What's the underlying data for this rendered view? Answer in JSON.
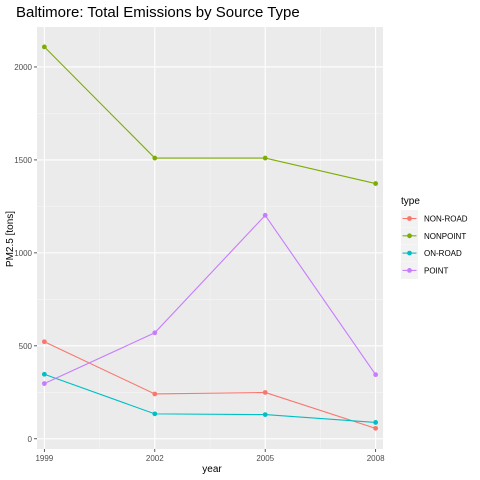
{
  "chart_data": {
    "type": "line",
    "title": "Baltimore: Total Emissions by Source Type",
    "xlabel": "year",
    "ylabel": "PM2.5 [tons]",
    "x": [
      1999,
      2002,
      2005,
      2008
    ],
    "x_ticks": [
      "1999",
      "2002",
      "2005",
      "2008"
    ],
    "y_ticks": [
      0,
      500,
      1000,
      1500,
      2000
    ],
    "xlim": [
      1998.8,
      2008.2
    ],
    "ylim": [
      -55,
      2215
    ],
    "grid": true,
    "legend_title": "type",
    "legend_position": "right",
    "series": [
      {
        "name": "NON-ROAD",
        "color": "#F8766D",
        "values": [
          522,
          241,
          249,
          56
        ]
      },
      {
        "name": "NONPOINT",
        "color": "#7CAE00",
        "values": [
          2108,
          1510,
          1510,
          1373
        ]
      },
      {
        "name": "ON-ROAD",
        "color": "#00BFC4",
        "values": [
          347,
          134,
          130,
          88
        ]
      },
      {
        "name": "POINT",
        "color": "#C77CFF",
        "values": [
          297,
          570,
          1202,
          345
        ]
      }
    ]
  }
}
